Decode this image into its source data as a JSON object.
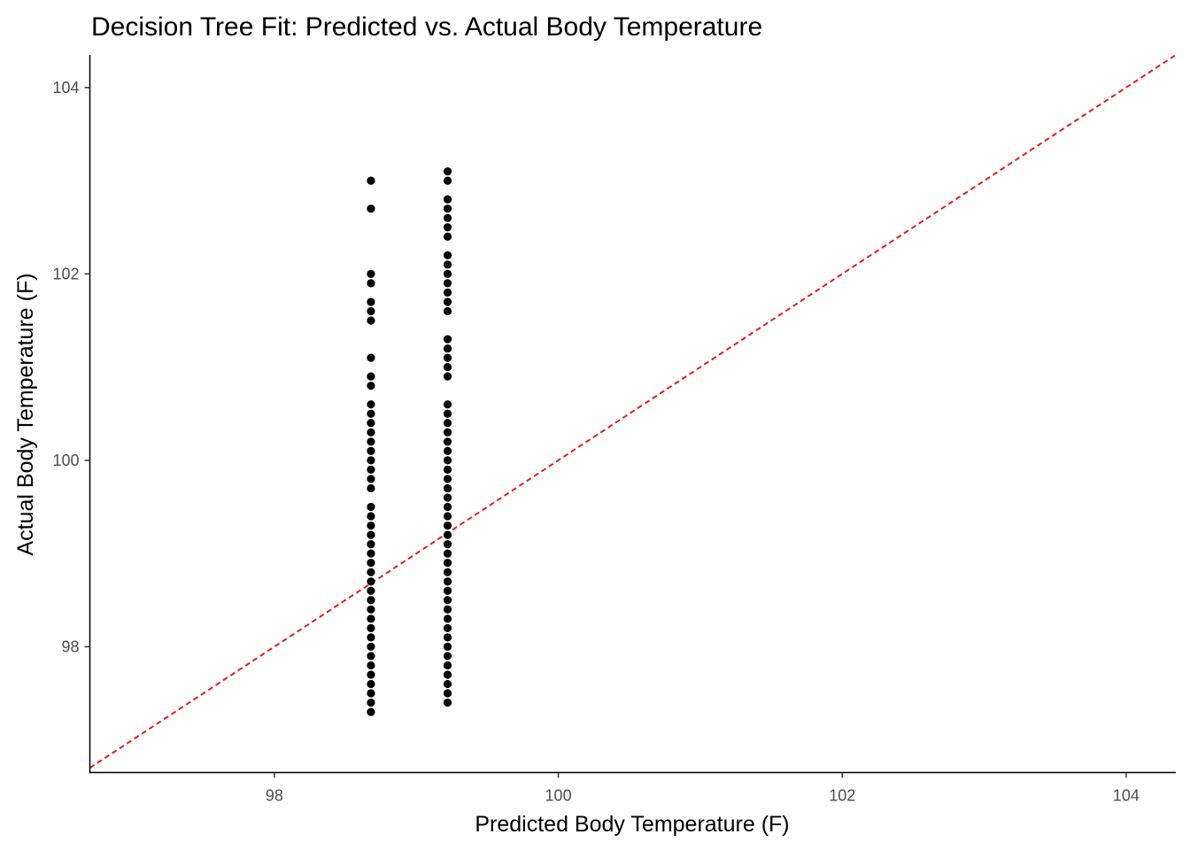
{
  "chart_data": {
    "type": "scatter",
    "title": "Decision Tree Fit: Predicted vs. Actual Body Temperature",
    "xlabel": "Predicted Body Temperature (F)",
    "ylabel": "Actual Body Temperature (F)",
    "xlim": [
      96.7,
      104.35
    ],
    "ylim": [
      96.65,
      104.35
    ],
    "x_ticks": [
      "98",
      "100",
      "102",
      "104"
    ],
    "y_ticks": [
      "98",
      "100",
      "102",
      "104"
    ],
    "grid": false,
    "legend": "none",
    "point_color": "#000000",
    "reference_line": {
      "type": "identity",
      "slope": 1,
      "intercept": 0,
      "color": "#e41a1c",
      "style": "dashed"
    },
    "series": [
      {
        "x": 98.68,
        "y": [
          97.3,
          97.4,
          97.5,
          97.6,
          97.7,
          97.8,
          97.9,
          98.0,
          98.1,
          98.2,
          98.3,
          98.4,
          98.5,
          98.6,
          98.7,
          98.8,
          98.9,
          99.0,
          99.1,
          99.2,
          99.3,
          99.4,
          99.5,
          99.7,
          99.8,
          99.9,
          100.0,
          100.1,
          100.2,
          100.3,
          100.4,
          100.5,
          100.6,
          100.8,
          100.9,
          101.1,
          101.5,
          101.6,
          101.7,
          101.9,
          102.0,
          102.7,
          103.0
        ]
      },
      {
        "x": 99.22,
        "y": [
          97.4,
          97.5,
          97.6,
          97.7,
          97.8,
          97.9,
          98.0,
          98.1,
          98.2,
          98.3,
          98.4,
          98.5,
          98.6,
          98.7,
          98.8,
          98.9,
          99.0,
          99.1,
          99.2,
          99.3,
          99.4,
          99.5,
          99.6,
          99.7,
          99.8,
          99.9,
          100.0,
          100.1,
          100.2,
          100.3,
          100.4,
          100.5,
          100.6,
          100.9,
          101.0,
          101.1,
          101.2,
          101.3,
          101.6,
          101.7,
          101.8,
          101.9,
          102.0,
          102.1,
          102.2,
          102.4,
          102.5,
          102.6,
          102.7,
          102.8,
          103.0,
          103.1
        ]
      }
    ]
  }
}
